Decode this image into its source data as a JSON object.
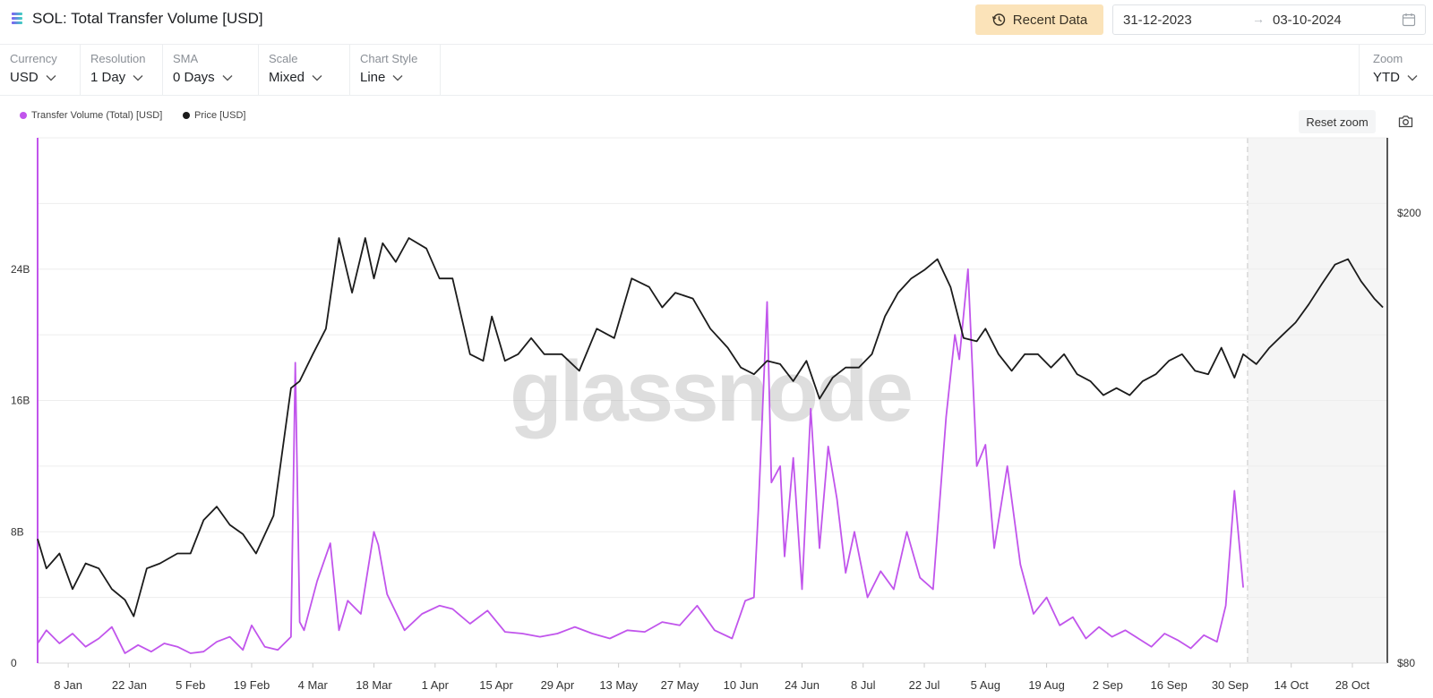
{
  "header": {
    "title": "SOL: Total Transfer Volume [USD]",
    "recent_label": "Recent Data",
    "date_from": "31-12-2023",
    "date_arrow": "→",
    "date_to": "03-10-2024"
  },
  "controls": {
    "currency": {
      "label": "Currency",
      "value": "USD"
    },
    "resolution": {
      "label": "Resolution",
      "value": "1 Day"
    },
    "sma": {
      "label": "SMA",
      "value": "0 Days"
    },
    "scale": {
      "label": "Scale",
      "value": "Mixed"
    },
    "chart_style": {
      "label": "Chart Style",
      "value": "Line"
    },
    "zoom": {
      "label": "Zoom",
      "value": "YTD"
    }
  },
  "reset_label": "Reset zoom",
  "watermark": "glassnode",
  "colors": {
    "volume": "#c155ec",
    "price": "#1b1b1b",
    "accent_button": "#fbe3b9"
  },
  "chart_data": {
    "type": "line",
    "x_axis": {
      "ticks": [
        "8 Jan",
        "22 Jan",
        "5 Feb",
        "19 Feb",
        "4 Mar",
        "18 Mar",
        "1 Apr",
        "15 Apr",
        "29 Apr",
        "13 May",
        "27 May",
        "10 Jun",
        "24 Jun",
        "8 Jul",
        "22 Jul",
        "5 Aug",
        "19 Aug",
        "2 Sep",
        "16 Sep",
        "30 Sep",
        "14 Oct",
        "28 Oct"
      ],
      "range": [
        "2024-01-01",
        "2024-11-05"
      ]
    },
    "y_left": {
      "ticks": [
        "0",
        "8B",
        "16B",
        "24B"
      ],
      "range": [
        0,
        32
      ],
      "unit": "B USD",
      "scale": "linear"
    },
    "y_right": {
      "ticks": [
        "$80",
        "$200"
      ],
      "range": [
        80,
        233
      ],
      "scale": "log"
    },
    "shaded_region": {
      "from": "2024-10-04",
      "to": "2024-11-05"
    },
    "grid": true,
    "legend_position": "top-left",
    "series": [
      {
        "name": "Transfer Volume (Total) [USD]",
        "axis": "left",
        "x": [
          "2024-01-01",
          "2024-01-03",
          "2024-01-06",
          "2024-01-09",
          "2024-01-12",
          "2024-01-15",
          "2024-01-18",
          "2024-01-21",
          "2024-01-24",
          "2024-01-27",
          "2024-01-30",
          "2024-02-02",
          "2024-02-05",
          "2024-02-08",
          "2024-02-11",
          "2024-02-14",
          "2024-02-17",
          "2024-02-19",
          "2024-02-22",
          "2024-02-25",
          "2024-02-28",
          "2024-02-29",
          "2024-03-01",
          "2024-03-02",
          "2024-03-05",
          "2024-03-08",
          "2024-03-10",
          "2024-03-12",
          "2024-03-15",
          "2024-03-18",
          "2024-03-19",
          "2024-03-21",
          "2024-03-25",
          "2024-03-29",
          "2024-04-02",
          "2024-04-05",
          "2024-04-09",
          "2024-04-13",
          "2024-04-17",
          "2024-04-21",
          "2024-04-25",
          "2024-04-29",
          "2024-05-03",
          "2024-05-07",
          "2024-05-11",
          "2024-05-15",
          "2024-05-19",
          "2024-05-23",
          "2024-05-27",
          "2024-05-31",
          "2024-06-04",
          "2024-06-08",
          "2024-06-11",
          "2024-06-13",
          "2024-06-14",
          "2024-06-16",
          "2024-06-17",
          "2024-06-19",
          "2024-06-20",
          "2024-06-22",
          "2024-06-24",
          "2024-06-26",
          "2024-06-28",
          "2024-06-30",
          "2024-07-02",
          "2024-07-04",
          "2024-07-06",
          "2024-07-09",
          "2024-07-12",
          "2024-07-15",
          "2024-07-18",
          "2024-07-21",
          "2024-07-24",
          "2024-07-27",
          "2024-07-29",
          "2024-07-30",
          "2024-08-01",
          "2024-08-03",
          "2024-08-05",
          "2024-08-07",
          "2024-08-10",
          "2024-08-13",
          "2024-08-16",
          "2024-08-19",
          "2024-08-22",
          "2024-08-25",
          "2024-08-28",
          "2024-08-31",
          "2024-09-03",
          "2024-09-06",
          "2024-09-09",
          "2024-09-12",
          "2024-09-15",
          "2024-09-18",
          "2024-09-21",
          "2024-09-24",
          "2024-09-27",
          "2024-09-29",
          "2024-10-01",
          "2024-10-03"
        ],
        "values": [
          1.2,
          2.0,
          1.2,
          1.8,
          1.0,
          1.5,
          2.2,
          0.6,
          1.1,
          0.7,
          1.2,
          1.0,
          0.6,
          0.7,
          1.3,
          1.6,
          0.8,
          2.3,
          1.0,
          0.8,
          1.6,
          18.3,
          2.5,
          2.0,
          5.0,
          7.3,
          2.0,
          3.8,
          3.0,
          8.0,
          7.2,
          4.2,
          2.0,
          3.0,
          3.5,
          3.3,
          2.4,
          3.2,
          1.9,
          1.8,
          1.6,
          1.8,
          2.2,
          1.8,
          1.5,
          2.0,
          1.9,
          2.5,
          2.3,
          3.5,
          2.0,
          1.5,
          3.8,
          4.0,
          9.3,
          22.0,
          11.0,
          12.0,
          6.5,
          12.5,
          4.5,
          15.5,
          7.0,
          13.2,
          10.0,
          5.5,
          8.0,
          4.0,
          5.6,
          4.5,
          8.0,
          5.2,
          4.5,
          15.0,
          20.0,
          18.5,
          24.0,
          12.0,
          13.3,
          7.0,
          12.0,
          6.0,
          3.0,
          4.0,
          2.3,
          2.8,
          1.5,
          2.2,
          1.6,
          2.0,
          1.5,
          1.0,
          1.8,
          1.4,
          0.9,
          1.7,
          1.3,
          3.5,
          10.5,
          4.6
        ]
      },
      {
        "name": "Price [USD]",
        "axis": "right",
        "x": [
          "2024-01-01",
          "2024-01-03",
          "2024-01-06",
          "2024-01-09",
          "2024-01-12",
          "2024-01-15",
          "2024-01-18",
          "2024-01-21",
          "2024-01-23",
          "2024-01-26",
          "2024-01-29",
          "2024-02-02",
          "2024-02-05",
          "2024-02-08",
          "2024-02-11",
          "2024-02-14",
          "2024-02-17",
          "2024-02-20",
          "2024-02-24",
          "2024-02-28",
          "2024-03-01",
          "2024-03-04",
          "2024-03-07",
          "2024-03-10",
          "2024-03-13",
          "2024-03-16",
          "2024-03-18",
          "2024-03-20",
          "2024-03-23",
          "2024-03-26",
          "2024-03-30",
          "2024-04-02",
          "2024-04-05",
          "2024-04-09",
          "2024-04-12",
          "2024-04-14",
          "2024-04-17",
          "2024-04-20",
          "2024-04-23",
          "2024-04-26",
          "2024-04-30",
          "2024-05-04",
          "2024-05-08",
          "2024-05-12",
          "2024-05-16",
          "2024-05-20",
          "2024-05-23",
          "2024-05-26",
          "2024-05-30",
          "2024-06-03",
          "2024-06-07",
          "2024-06-10",
          "2024-06-13",
          "2024-06-16",
          "2024-06-19",
          "2024-06-22",
          "2024-06-25",
          "2024-06-28",
          "2024-07-01",
          "2024-07-04",
          "2024-07-07",
          "2024-07-10",
          "2024-07-13",
          "2024-07-16",
          "2024-07-19",
          "2024-07-22",
          "2024-07-25",
          "2024-07-28",
          "2024-07-31",
          "2024-08-03",
          "2024-08-05",
          "2024-08-08",
          "2024-08-11",
          "2024-08-14",
          "2024-08-17",
          "2024-08-20",
          "2024-08-23",
          "2024-08-26",
          "2024-08-29",
          "2024-09-01",
          "2024-09-04",
          "2024-09-07",
          "2024-09-10",
          "2024-09-13",
          "2024-09-16",
          "2024-09-19",
          "2024-09-22",
          "2024-09-25",
          "2024-09-28",
          "2024-10-01",
          "2024-10-03",
          "2024-10-06",
          "2024-10-09",
          "2024-10-12",
          "2024-10-15",
          "2024-10-18",
          "2024-10-21",
          "2024-10-24",
          "2024-10-27",
          "2024-10-30",
          "2024-11-02",
          "2024-11-04"
        ],
        "values": [
          103,
          97,
          100,
          93,
          98,
          97,
          93,
          91,
          88,
          97,
          98,
          100,
          100,
          107,
          110,
          106,
          104,
          100,
          108,
          140,
          142,
          150,
          158,
          190,
          170,
          190,
          175,
          188,
          181,
          190,
          186,
          175,
          175,
          150,
          148,
          162,
          148,
          150,
          155,
          150,
          150,
          145,
          158,
          155,
          175,
          172,
          165,
          170,
          168,
          158,
          152,
          146,
          144,
          148,
          147,
          142,
          148,
          137,
          143,
          146,
          146,
          150,
          162,
          170,
          175,
          178,
          182,
          172,
          155,
          154,
          158,
          150,
          145,
          150,
          150,
          146,
          150,
          144,
          142,
          138,
          140,
          138,
          142,
          144,
          148,
          150,
          145,
          144,
          152,
          143,
          150,
          147,
          152,
          156,
          160,
          166,
          173,
          180,
          182,
          174,
          168,
          165
        ]
      }
    ]
  }
}
